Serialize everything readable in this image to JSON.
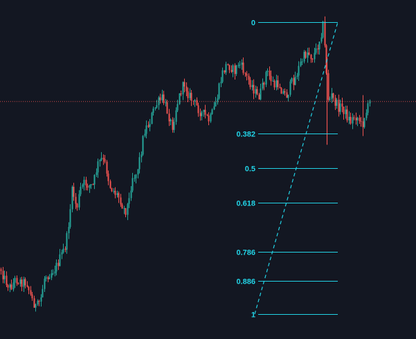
{
  "chart_data": {
    "type": "candlestick",
    "title": "",
    "xlabel": "",
    "ylabel": "",
    "ylim": [
      0.98,
      0.0
    ],
    "grid": false,
    "colors": {
      "background": "#131722",
      "up": "#26a69a",
      "down": "#ef5350",
      "fib_line": "#22d3e6",
      "fib_label": "#22d3e6",
      "price_line": "#ef5350"
    },
    "price_line_level": 0.272,
    "fibonacci": {
      "trend_line": {
        "from": [
          368,
          1.0
        ],
        "to": [
          488,
          0.0
        ]
      },
      "levels": [
        {
          "label": "0",
          "value": 0.0
        },
        {
          "label": "0.382",
          "value": 0.382
        },
        {
          "label": "0.5",
          "value": 0.5
        },
        {
          "label": "0.618",
          "value": 0.618
        },
        {
          "label": "0.786",
          "value": 0.786
        },
        {
          "label": "0.886",
          "value": 0.886
        },
        {
          "label": "1",
          "value": 1.0
        }
      ]
    },
    "series_anchors": [
      [
        0,
        0.84
      ],
      [
        6,
        0.88
      ],
      [
        14,
        0.91
      ],
      [
        22,
        0.88
      ],
      [
        30,
        0.89
      ],
      [
        38,
        0.89
      ],
      [
        44,
        0.94
      ],
      [
        52,
        0.98
      ],
      [
        58,
        0.95
      ],
      [
        64,
        0.87
      ],
      [
        72,
        0.86
      ],
      [
        80,
        0.84
      ],
      [
        88,
        0.8
      ],
      [
        95,
        0.76
      ],
      [
        100,
        0.66
      ],
      [
        104,
        0.57
      ],
      [
        110,
        0.64
      ],
      [
        116,
        0.57
      ],
      [
        122,
        0.55
      ],
      [
        128,
        0.56
      ],
      [
        134,
        0.56
      ],
      [
        140,
        0.49
      ],
      [
        146,
        0.47
      ],
      [
        152,
        0.49
      ],
      [
        158,
        0.56
      ],
      [
        164,
        0.58
      ],
      [
        172,
        0.6
      ],
      [
        180,
        0.65
      ],
      [
        186,
        0.61
      ],
      [
        190,
        0.53
      ],
      [
        196,
        0.52
      ],
      [
        202,
        0.46
      ],
      [
        208,
        0.37
      ],
      [
        214,
        0.35
      ],
      [
        220,
        0.31
      ],
      [
        226,
        0.28
      ],
      [
        234,
        0.26
      ],
      [
        242,
        0.31
      ],
      [
        248,
        0.36
      ],
      [
        254,
        0.29
      ],
      [
        260,
        0.24
      ],
      [
        266,
        0.21
      ],
      [
        272,
        0.25
      ],
      [
        278,
        0.27
      ],
      [
        284,
        0.29
      ],
      [
        290,
        0.31
      ],
      [
        296,
        0.32
      ],
      [
        302,
        0.34
      ],
      [
        308,
        0.3
      ],
      [
        314,
        0.25
      ],
      [
        320,
        0.18
      ],
      [
        326,
        0.15
      ],
      [
        332,
        0.15
      ],
      [
        338,
        0.17
      ],
      [
        344,
        0.14
      ],
      [
        350,
        0.16
      ],
      [
        356,
        0.19
      ],
      [
        362,
        0.21
      ],
      [
        368,
        0.24
      ],
      [
        372,
        0.26
      ],
      [
        378,
        0.23
      ],
      [
        384,
        0.17
      ],
      [
        390,
        0.19
      ],
      [
        396,
        0.22
      ],
      [
        402,
        0.21
      ],
      [
        408,
        0.24
      ],
      [
        414,
        0.25
      ],
      [
        420,
        0.21
      ],
      [
        426,
        0.19
      ],
      [
        432,
        0.15
      ],
      [
        438,
        0.12
      ],
      [
        444,
        0.1
      ],
      [
        450,
        0.12
      ],
      [
        456,
        0.1
      ],
      [
        462,
        0.05
      ],
      [
        466,
        0.01
      ],
      [
        470,
        0.13
      ],
      [
        474,
        0.28
      ],
      [
        478,
        0.25
      ],
      [
        482,
        0.27
      ],
      [
        488,
        0.29
      ],
      [
        494,
        0.29
      ],
      [
        500,
        0.32
      ],
      [
        506,
        0.34
      ],
      [
        512,
        0.32
      ],
      [
        518,
        0.33
      ],
      [
        522,
        0.36
      ],
      [
        526,
        0.32
      ],
      [
        530,
        0.3
      ],
      [
        534,
        0.27
      ]
    ]
  }
}
